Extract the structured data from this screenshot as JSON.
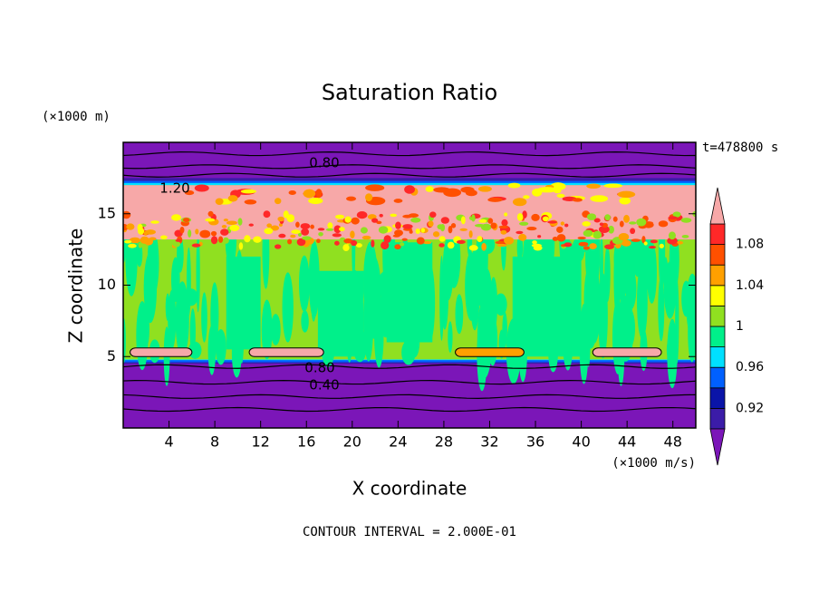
{
  "chart_data": {
    "type": "contour",
    "title": "Saturation Ratio",
    "x_label": "X coordinate",
    "y_label": "Z coordinate",
    "x_unit": "(×1000 m/s)",
    "y_unit": "(×1000 m)",
    "time_label": "t=478800 s",
    "footer": "CONTOUR INTERVAL = 2.000E-01",
    "xlim": [
      0,
      50
    ],
    "xticks": [
      4,
      8,
      12,
      16,
      20,
      24,
      28,
      32,
      36,
      40,
      44,
      48
    ],
    "ylim": [
      0,
      20
    ],
    "yticks": [
      5,
      10,
      15
    ],
    "colorbar": {
      "levels": [
        0.9,
        0.92,
        0.94,
        0.96,
        0.98,
        1,
        1.02,
        1.04,
        1.06,
        1.08,
        1.1
      ],
      "colors": [
        "#7b16b8",
        "#3b1ca8",
        "#0a14a8",
        "#0060ff",
        "#00e0ff",
        "#00f08a",
        "#90e020",
        "#ffff00",
        "#ffa000",
        "#ff5000",
        "#ff2828",
        "#f7a8a8"
      ],
      "ticks": [
        0.92,
        0.96,
        1,
        1.04,
        1.08
      ]
    },
    "contour_labels": [
      {
        "value": 0.8,
        "label": "0.80"
      },
      {
        "value": 1.2,
        "label": "1.20"
      },
      {
        "value": 0.8,
        "label": "0.80"
      },
      {
        "value": 0.4,
        "label": "0.40"
      }
    ]
  }
}
